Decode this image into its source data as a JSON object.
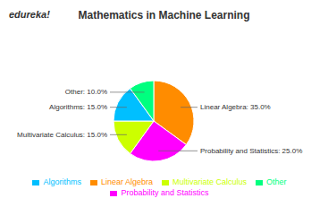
{
  "chart_data": {
    "type": "pie",
    "title": "Mathematics in Machine Learning",
    "categories": [
      "Linear Algebra",
      "Probability and Statistics",
      "Multivariate Calculus",
      "Algorithms",
      "Other"
    ],
    "values": [
      35.0,
      25.0,
      15.0,
      15.0,
      10.0
    ],
    "value_labels": [
      "Linear Algebra: 35.0%",
      "Probability and Statistics: 25.0%",
      "Multivariate Calculus: 15.0%",
      "Algorithms: 15.0%",
      "Other: 10.0%"
    ],
    "colors": [
      "#FF8C00",
      "#FF00FF",
      "#CCFF00",
      "#00BFFF",
      "#00FF7F"
    ],
    "annotations": [
      "edureka!"
    ],
    "legend": "bottom",
    "data_labels": true
  }
}
